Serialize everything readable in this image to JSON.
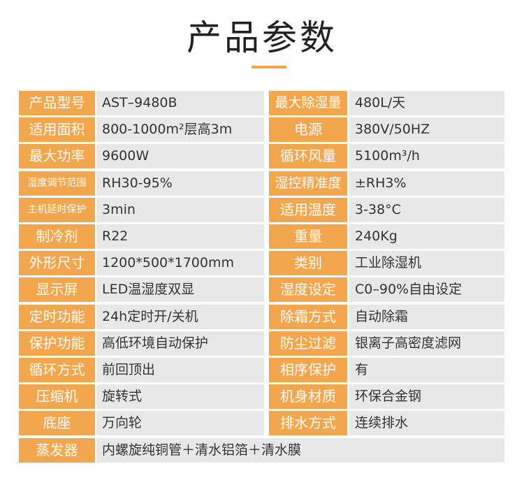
{
  "header": {
    "title": "产品参数"
  },
  "table": {
    "rows": [
      [
        "产品型号",
        "AST–9480B",
        "最大除湿量",
        "480L/天"
      ],
      [
        "适用面积",
        "800-1000m²层高3m",
        "电源",
        "380V/50HZ"
      ],
      [
        "最大功率",
        "9600W",
        "循环风量",
        "5100m³/h"
      ],
      [
        "湿度调节范围",
        "RH30-95%",
        "湿控精准度",
        "±RH3%"
      ],
      [
        "主机延时保护",
        "3min",
        "适用温度",
        "3-38°C"
      ],
      [
        "制冷剂",
        "R22",
        "重量",
        "240Kg"
      ],
      [
        "外形尺寸",
        "1200*500*1700mm",
        "类别",
        "工业除湿机"
      ],
      [
        "显示屏",
        "LED温湿度双显",
        "湿度设定",
        "C0–90%自由设定"
      ],
      [
        "定时功能",
        "24h定时开/关机",
        "除霜方式",
        "自动除霜"
      ],
      [
        "保护功能",
        "高低环境自动保护",
        "防尘过滤",
        "银离子高密度滤网"
      ],
      [
        "循环方式",
        "前回顶出",
        "相序保护",
        "有"
      ],
      [
        "压缩机",
        "旋转式",
        "机身材质",
        "环保合金钢"
      ],
      [
        "底座",
        "万向轮",
        "排水方式",
        "连续排水"
      ],
      [
        "蒸发器",
        "内螺旋纯铜管＋清水铝箔＋清水膜"
      ]
    ]
  }
}
